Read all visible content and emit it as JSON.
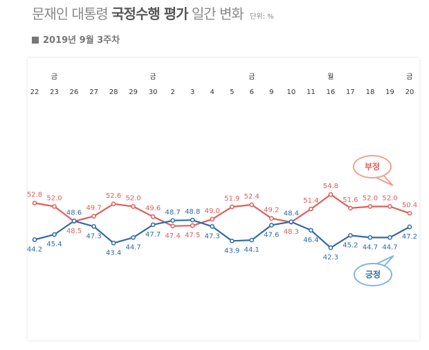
{
  "title": {
    "prefix": "문재인 대통령",
    "bold": "국정수행 평가",
    "suffix": "일간 변화",
    "unit": "단위: %"
  },
  "subtitle": "2019년 9월 3주차",
  "chart_data": {
    "type": "line",
    "x": [
      "22",
      "23",
      "26",
      "27",
      "28",
      "29",
      "30",
      "2",
      "3",
      "4",
      "5",
      "6",
      "9",
      "10",
      "11",
      "16",
      "17",
      "18",
      "19",
      "20"
    ],
    "day_of_week": [
      "",
      "금",
      "",
      "",
      "",
      "",
      "금",
      "",
      "",
      "",
      "",
      "금",
      "",
      "",
      "",
      "월",
      "",
      "",
      "",
      "금"
    ],
    "series": [
      {
        "name": "부정",
        "color": "#e25b5b",
        "values": [
          52.8,
          52.0,
          48.5,
          49.7,
          52.6,
          52.0,
          49.6,
          47.4,
          47.5,
          49.0,
          51.9,
          52.4,
          49.2,
          48.3,
          51.4,
          54.8,
          51.6,
          52.0,
          52.0,
          50.4
        ]
      },
      {
        "name": "긍정",
        "color": "#2f6aa6",
        "values": [
          44.2,
          45.4,
          48.6,
          47.3,
          43.4,
          44.7,
          47.7,
          48.7,
          48.8,
          47.3,
          43.9,
          44.1,
          47.6,
          48.4,
          46.4,
          42.3,
          45.2,
          44.7,
          44.7,
          47.2
        ]
      }
    ],
    "grid": false,
    "legend": "callouts"
  }
}
